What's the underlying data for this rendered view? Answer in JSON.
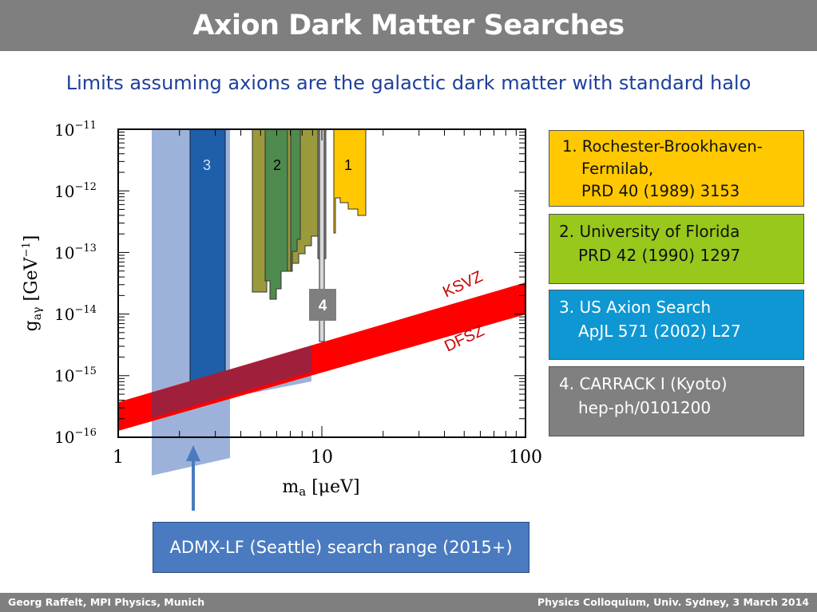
{
  "title": "Axion Dark Matter Searches",
  "subtitle": "Limits assuming axions are the galactic dark matter with standard halo",
  "legend": [
    {
      "line1": "1. Rochester-Brookhaven-",
      "line2": "Fermilab,",
      "line3": "PRD 40 (1989) 3153"
    },
    {
      "line1": "2. University of Florida",
      "line2": "PRD 42 (1990) 1297"
    },
    {
      "line1": "3. US Axion Search",
      "line2": "ApJL 571 (2002) L27"
    },
    {
      "line1": "4. CARRACK I (Kyoto)",
      "line2": "hep-ph/0101200"
    }
  ],
  "admx_label": "ADMX-LF (Seattle) search range (2015+)",
  "footer": {
    "left": "Georg Raffelt, MPI Physics, Munich",
    "right": "Physics Colloquium, Univ. Sydney, 3 March 2014"
  },
  "colors": {
    "experiment_1": "#ffc800",
    "experiment_2_olive": "#9a9a3c",
    "experiment_2_green": "#4f8a4f",
    "experiment_3": "#1f5faa",
    "admx_range": "#8ca4d4",
    "axion_band": "#ff0000",
    "overlap": "#a0203c",
    "carrack": "#808080"
  },
  "chart_data": {
    "type": "area",
    "x_scale": "log",
    "y_scale": "log",
    "xlabel": "m_a [μeV]",
    "ylabel": "g_aγ [GeV^-1]",
    "xlim": [
      1,
      100
    ],
    "ylim": [
      1e-16,
      1e-11
    ],
    "x_ticks": [
      1,
      10,
      100
    ],
    "y_ticks": [
      "10^-11",
      "10^-12",
      "10^-13",
      "10^-14",
      "10^-15",
      "10^-16"
    ],
    "x_tick_labels": [
      "1",
      "10",
      "100"
    ],
    "bands": [
      {
        "label": "KSVZ",
        "edge": "upper",
        "x": [
          1,
          100
        ],
        "y": [
          7.5e-16,
          1.3e-14
        ]
      },
      {
        "label": "DFSZ",
        "edge": "lower",
        "x": [
          1,
          100
        ],
        "y": [
          2.8e-16,
          4.9e-15
        ]
      }
    ],
    "exclusion_regions": [
      {
        "label": "1",
        "color": "experiment_1",
        "x": [
          10.5,
          10.5,
          12.5,
          12.5,
          15.0,
          15.0,
          16.7,
          16.7,
          10.5
        ],
        "y": [
          1e-11,
          4.5e-13,
          4.5e-13,
          8e-13,
          8e-13,
          6e-13,
          6e-13,
          1e-11,
          1e-11
        ]
      },
      {
        "label": "2",
        "color": "experiment_2_green",
        "x": [
          5.4,
          5.4,
          6.8,
          6.8,
          8.3,
          8.3,
          5.4
        ],
        "y": [
          1e-11,
          3e-14,
          3e-14,
          1.3e-13,
          1.3e-13,
          1e-11,
          1e-11
        ]
      },
      {
        "label": "3",
        "color": "experiment_3",
        "x": [
          2.3,
          2.3,
          3.3,
          3.3,
          2.3
        ],
        "y": [
          1e-11,
          1.2e-15,
          1.2e-15,
          1e-11,
          1e-11
        ]
      },
      {
        "label": "4",
        "color": "carrack",
        "x": [
          9.7,
          9.7,
          10.1,
          10.1,
          9.7
        ],
        "y": [
          1e-11,
          1.2e-13,
          1.2e-13,
          1e-11,
          1e-11
        ]
      }
    ],
    "experiment_labels": [
      "1",
      "2",
      "3",
      "4"
    ],
    "admx_range": {
      "x": [
        1.5,
        3.6
      ]
    }
  }
}
